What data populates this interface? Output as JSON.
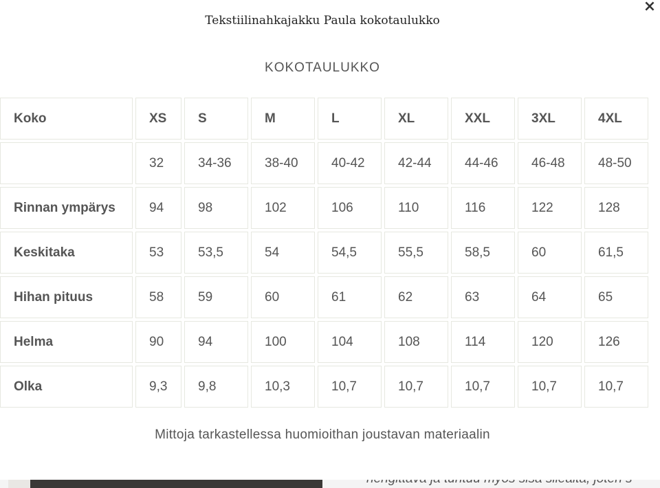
{
  "modal": {
    "title": "Tekstiilinahkajakku Paula kokotaulukko",
    "close_label": "×",
    "subtitle": "KOKOTAULUKKO",
    "note": "Mittoja tarkastellessa huomioithan joustavan materiaalin"
  },
  "table": {
    "header": [
      "Koko",
      "XS",
      "S",
      "M",
      "L",
      "XL",
      "XXL",
      "3XL",
      "4XL"
    ],
    "rows": [
      [
        "",
        "32",
        "34-36",
        "38-40",
        "40-42",
        "42-44",
        "44-46",
        "46-48",
        "48-50"
      ],
      [
        "Rinnan ympärys",
        "94",
        "98",
        "102",
        "106",
        "110",
        "116",
        "122",
        "128"
      ],
      [
        "Keskitaka",
        "53",
        "53,5",
        "54",
        "54,5",
        "55,5",
        "58,5",
        "60",
        "61,5"
      ],
      [
        "Hihan pituus",
        "58",
        "59",
        "60",
        "61",
        "62",
        "63",
        "64",
        "65"
      ],
      [
        "Helma",
        "90",
        "94",
        "100",
        "104",
        "108",
        "114",
        "120",
        "126"
      ],
      [
        "Olka",
        "9,3",
        "9,8",
        "10,3",
        "10,7",
        "10,7",
        "10,7",
        "10,7",
        "10,7"
      ]
    ]
  },
  "background": {
    "partial_text": "hengittävä ja tuntuu myös sisä sileältä, joten s"
  }
}
